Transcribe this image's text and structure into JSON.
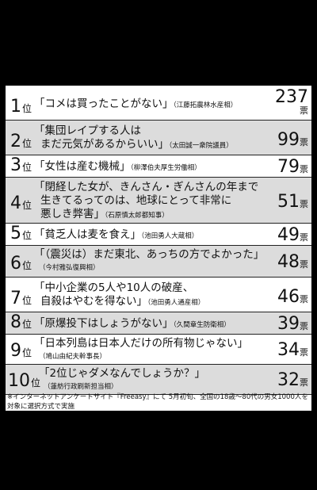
{
  "ranking": [
    {
      "rank": "1",
      "unit": "位",
      "quote_lines": [
        "「コメは買ったことがない」"
      ],
      "source": "（江藤拓農林水産相）",
      "votes": "237",
      "votes_unit": "票"
    },
    {
      "rank": "2",
      "unit": "位",
      "quote_lines": [
        "「集団レイプする人は",
        "まだ元気があるからいい」"
      ],
      "source": "（太田誠一衆院議員）",
      "votes": "99",
      "votes_unit": "票"
    },
    {
      "rank": "3",
      "unit": "位",
      "quote_lines": [
        "「女性は産む機械」"
      ],
      "source": "（柳澤伯夫厚生労働相）",
      "votes": "79",
      "votes_unit": "票"
    },
    {
      "rank": "4",
      "unit": "位",
      "quote_lines": [
        "「閉経した女が、きんさん・ぎんさんの年まで",
        "生きてるってのは、地球にとって非常に",
        "悪しき弊害」"
      ],
      "source": "（石原慎太郎都知事）",
      "votes": "51",
      "votes_unit": "票"
    },
    {
      "rank": "5",
      "unit": "位",
      "quote_lines": [
        "「貧乏人は麦を食え」"
      ],
      "source": "（池田勇人大蔵相）",
      "votes": "49",
      "votes_unit": "票"
    },
    {
      "rank": "6",
      "unit": "位",
      "quote_lines": [
        "「（震災は）まだ東北、あっちの方でよかった」"
      ],
      "source": "（今村雅弘復興相）",
      "votes": "48",
      "votes_unit": "票"
    },
    {
      "rank": "7",
      "unit": "位",
      "quote_lines": [
        "「中小企業の5人や10人の破産、",
        "自殺はやむを得ない」"
      ],
      "source": "（池田勇人通産相）",
      "votes": "46",
      "votes_unit": "票"
    },
    {
      "rank": "8",
      "unit": "位",
      "quote_lines": [
        "「原爆投下はしょうがない」"
      ],
      "source": "（久間章生防衛相）",
      "votes": "39",
      "votes_unit": "票"
    },
    {
      "rank": "9",
      "unit": "位",
      "quote_lines": [
        "「日本列島は日本人だけの所有物じゃない」"
      ],
      "source": "（鳩山由紀夫幹事長）",
      "votes": "34",
      "votes_unit": "票"
    },
    {
      "rank": "10",
      "unit": "位",
      "quote_lines": [
        "「2位じゃダメなんでしょうか？」"
      ],
      "source": "（蓮舫行政刷新担当相）",
      "votes": "32",
      "votes_unit": "票"
    }
  ],
  "footnote": "※インターネットアンケートサイト『Freeasy』にて 5月初旬、全国の18歳～80代の男女1000人を対象に選択方式で実施"
}
